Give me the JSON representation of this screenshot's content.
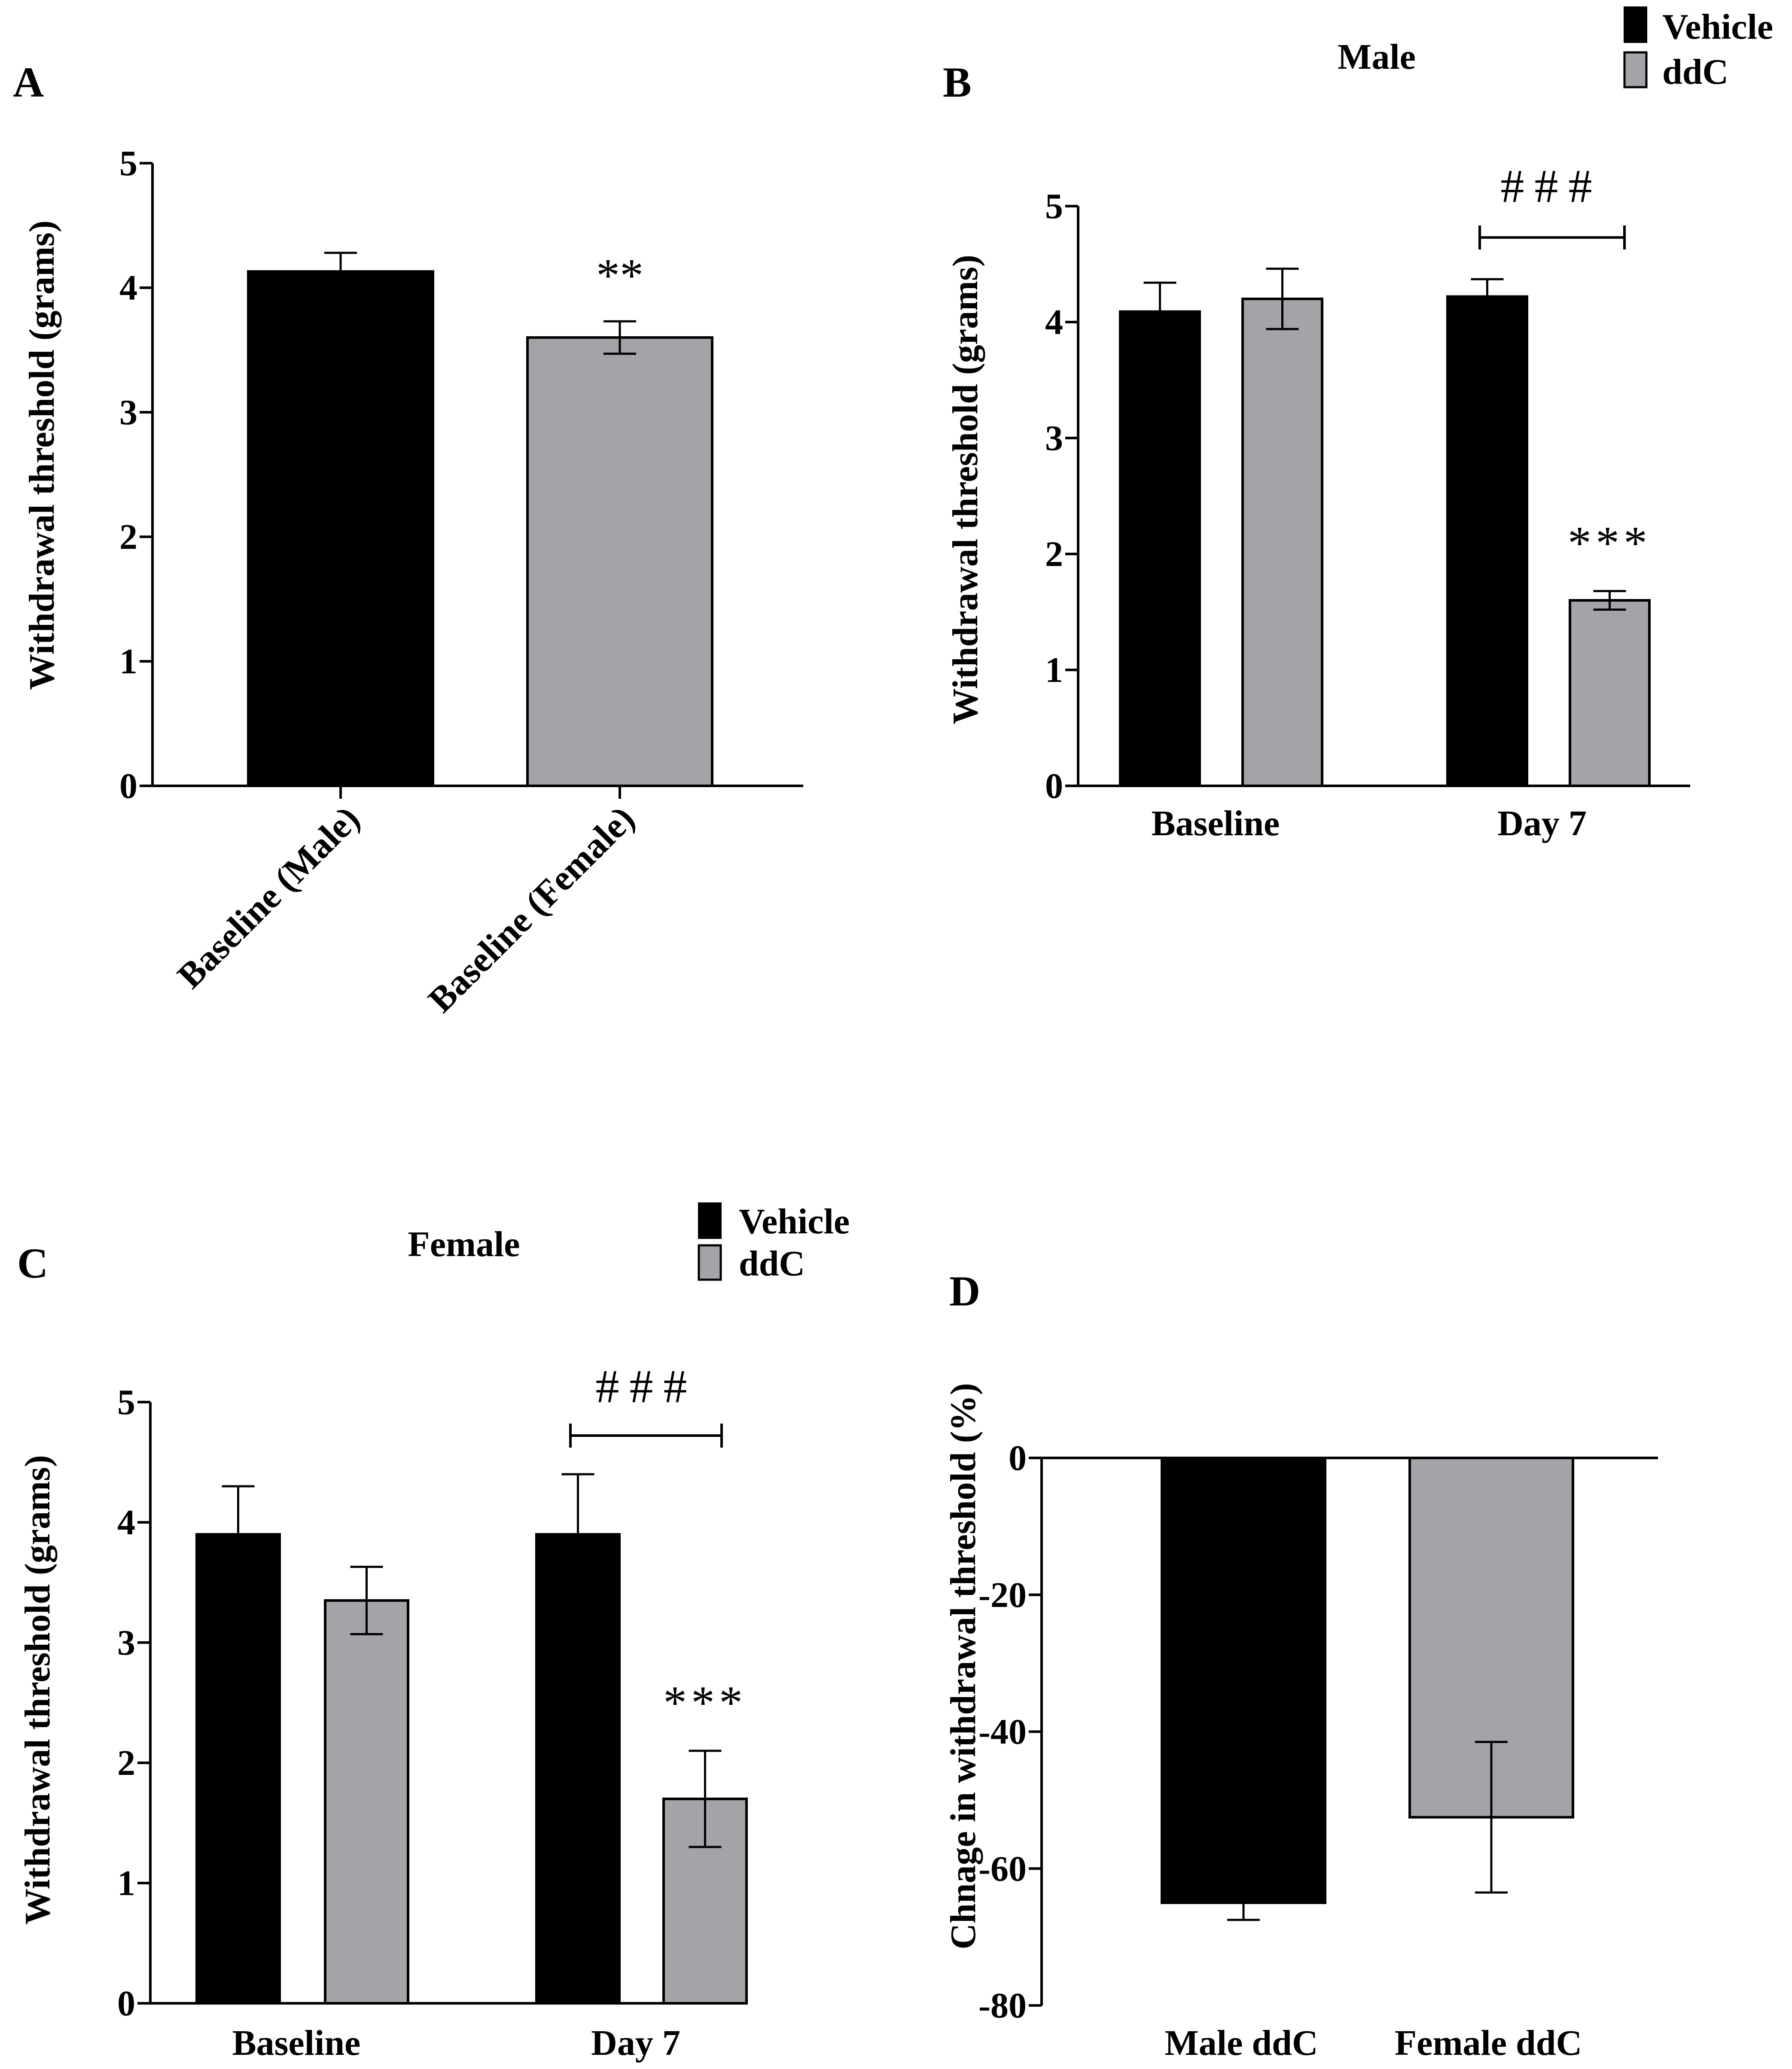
{
  "colors": {
    "vehicle": "#000000",
    "ddc": "#A3A3A8",
    "axis": "#000000"
  },
  "chart_data": [
    {
      "panel": "A",
      "type": "bar",
      "title": "",
      "ylabel": "Withdrawal threshold (grams)",
      "xlabel": "",
      "ylim": [
        0,
        5
      ],
      "yticks": [
        "0",
        "1",
        "2",
        "3",
        "4",
        "5"
      ],
      "categories": [
        "Baseline (Male)",
        "Baseline (Female)"
      ],
      "values": [
        4.13,
        3.6
      ],
      "errors": [
        0.15,
        0.13
      ],
      "fills": [
        "vehicle",
        "ddc"
      ],
      "significance": [
        "",
        "**"
      ]
    },
    {
      "panel": "B",
      "type": "bar",
      "title": "Male",
      "ylabel": "Withdrawal threshold (grams)",
      "ylim": [
        0,
        5
      ],
      "yticks": [
        "0",
        "1",
        "2",
        "3",
        "4",
        "5"
      ],
      "categories": [
        "Baseline",
        "Day 7"
      ],
      "legend": [
        "Vehicle",
        "ddC"
      ],
      "series": [
        {
          "name": "Vehicle",
          "values": [
            4.09,
            4.22
          ],
          "errors": [
            0.25,
            0.15
          ]
        },
        {
          "name": "ddC",
          "values": [
            4.2,
            1.6
          ],
          "errors": [
            0.26,
            0.08
          ]
        }
      ],
      "significance": {
        "bar": "***",
        "bracket": "###"
      }
    },
    {
      "panel": "C",
      "type": "bar",
      "title": "Female",
      "ylabel": "Withdrawal threshold (grams)",
      "ylim": [
        0,
        5
      ],
      "yticks": [
        "0",
        "1",
        "2",
        "3",
        "4",
        "5"
      ],
      "categories": [
        "Baseline",
        "Day 7"
      ],
      "legend": [
        "Vehicle",
        "ddC"
      ],
      "series": [
        {
          "name": "Vehicle",
          "values": [
            3.9,
            3.9
          ],
          "errors": [
            0.4,
            0.5
          ]
        },
        {
          "name": "ddC",
          "values": [
            3.35,
            1.7
          ],
          "errors": [
            0.28,
            0.4
          ]
        }
      ],
      "significance": {
        "bar": "***",
        "bracket": "###"
      }
    },
    {
      "panel": "D",
      "type": "bar",
      "title": "",
      "ylabel": "Chnage in withdrawal threshold (%)",
      "ylim": [
        -80,
        0
      ],
      "yticks": [
        "0",
        "-20",
        "-40",
        "-60",
        "-80"
      ],
      "categories": [
        "Male ddC",
        "Female ddC"
      ],
      "values": [
        -65,
        -52.5
      ],
      "errors": [
        2.5,
        11
      ],
      "fills": [
        "vehicle",
        "ddc"
      ]
    }
  ]
}
